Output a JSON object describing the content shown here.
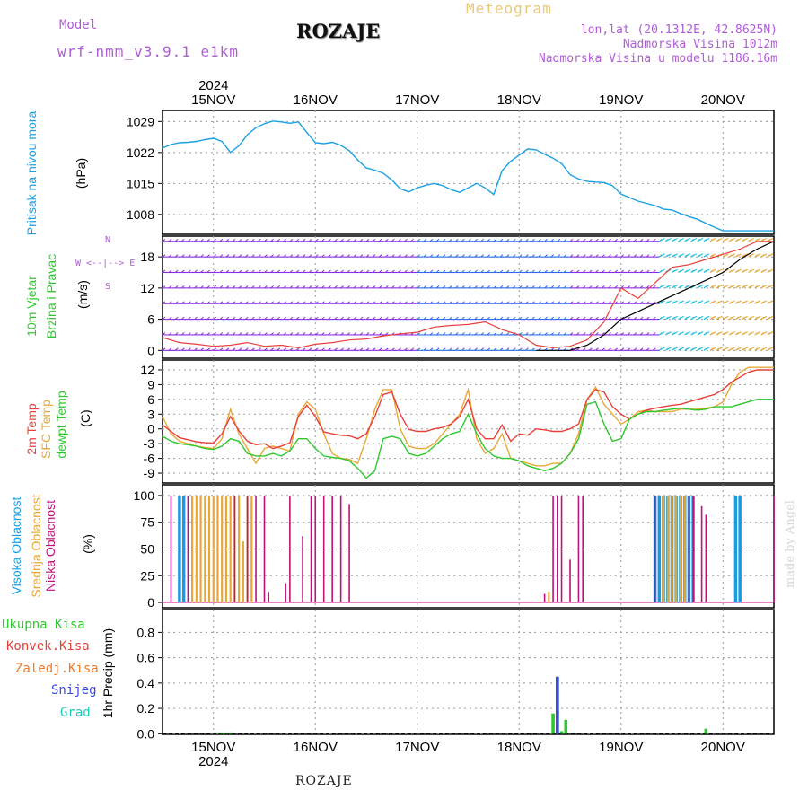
{
  "header": {
    "model_label": "Model",
    "model_name": "wrf-nmm_v3.9.1 e1km",
    "title": "ROZAJE",
    "meteogram": "Meteogram",
    "coords": "lon,lat (20.1312E, 42.8625N)",
    "elevation": "Nadmorska Visina 1012m",
    "model_elevation": "Nadmorska Visina u modelu 1186.16m"
  },
  "footer": {
    "title": "ROZAJE",
    "credit": "made by Angel"
  },
  "colors": {
    "pressure": "#1aa0e6",
    "t2m": "#e8403a",
    "sfc": "#e8a838",
    "dew": "#2ec82e",
    "high_cloud": "#1a9ae0",
    "mid_cloud": "#e8a838",
    "low_cloud": "#c0127a",
    "total_precip": "#2ec82e",
    "conv_precip": "#e8403a",
    "frz_precip": "#f07a2a",
    "snow": "#3a4ae0",
    "graupel": "#20c8b8",
    "wind_speed": "#e8403a",
    "wind_gust": "#000000",
    "grid": "#9a9a9a",
    "accent": "#b05cd8"
  },
  "chart_data": [
    {
      "type": "line",
      "title": "Pritisak na nivou mora",
      "ylabel": "(hPa)",
      "xlabel_top": [
        "15NOV",
        "16NOV",
        "17NOV",
        "18NOV",
        "19NOV",
        "20NOV"
      ],
      "year_label": "2024",
      "yticks": [
        1008,
        1015,
        1022,
        1029
      ],
      "ylim": [
        1003.5,
        1031.5
      ],
      "xlim": [
        0,
        144
      ],
      "grid": true,
      "series": [
        {
          "name": "Pritisak na nivou mora",
          "x": [
            0,
            2,
            4,
            6,
            8,
            10,
            12,
            14,
            16,
            18,
            20,
            22,
            24,
            26,
            28,
            30,
            32,
            34,
            36,
            38,
            40,
            42,
            44,
            46,
            48,
            50,
            52,
            54,
            56,
            58,
            60,
            62,
            64,
            66,
            68,
            70,
            72,
            74,
            76,
            78,
            80,
            82,
            84,
            86,
            88,
            90,
            92,
            94,
            96,
            98,
            100,
            102,
            104,
            106,
            108,
            110,
            112,
            114,
            116,
            118,
            120,
            122,
            124,
            126,
            128,
            130,
            132,
            134,
            136,
            138,
            140,
            142,
            144
          ],
          "values": [
            1023.0,
            1023.8,
            1024.2,
            1024.3,
            1024.5,
            1024.9,
            1025.2,
            1024.5,
            1022.0,
            1023.5,
            1026.0,
            1027.6,
            1028.5,
            1029.1,
            1028.9,
            1028.6,
            1028.9,
            1026.5,
            1024.2,
            1024.0,
            1024.3,
            1023.6,
            1022.4,
            1020.3,
            1018.5,
            1018.0,
            1017.3,
            1015.8,
            1013.8,
            1013.1,
            1014.0,
            1014.6,
            1015.0,
            1014.5,
            1013.6,
            1013.0,
            1014.0,
            1015.0,
            1014.0,
            1012.5,
            1017.9,
            1020.0,
            1021.4,
            1022.8,
            1022.6,
            1021.6,
            1020.7,
            1019.5,
            1017.0,
            1016.0,
            1015.5,
            1015.3,
            1015.2,
            1014.5,
            1012.6,
            1011.8,
            1011.0,
            1010.5,
            1010.0,
            1009.2,
            1009.0,
            1008.2,
            1007.5,
            1006.9,
            1006.0,
            1005.1,
            1004.3,
            1004.3,
            1004.3,
            1004.3,
            1004.3,
            1004.3,
            1004.3
          ]
        }
      ]
    },
    {
      "type": "line",
      "title": "10m Vjetar Brzina i Pravac",
      "ylabel": "(m/s)",
      "compass": "W <--|--> E",
      "compass_n": "N",
      "compass_s": "S",
      "yticks": [
        0,
        6,
        12,
        18
      ],
      "ylim": [
        -1.5,
        22
      ],
      "xlim": [
        0,
        144
      ],
      "grid": true,
      "series": [
        {
          "name": "wind speed",
          "x": [
            0,
            4,
            8,
            12,
            16,
            20,
            24,
            28,
            32,
            36,
            40,
            44,
            48,
            52,
            56,
            60,
            64,
            68,
            72,
            76,
            80,
            84,
            88,
            92,
            96,
            100,
            104,
            108,
            112,
            116,
            120,
            124,
            128,
            132,
            136,
            140,
            144
          ],
          "values": [
            2.5,
            1.5,
            1.2,
            0.8,
            1.0,
            1.5,
            0.8,
            1.0,
            0.5,
            1.2,
            1.5,
            2.0,
            2.2,
            2.8,
            3.2,
            3.5,
            4.5,
            4.8,
            5.0,
            5.5,
            4.0,
            3.0,
            1.0,
            0.5,
            0.8,
            2.0,
            5.5,
            12.0,
            10.0,
            13.0,
            16.0,
            16.5,
            17.5,
            18.5,
            19.5,
            21.0,
            21.0
          ]
        },
        {
          "name": "wind gust",
          "x": [
            88,
            92,
            96,
            100,
            104,
            108,
            112,
            116,
            120,
            124,
            128,
            132,
            136,
            140,
            144
          ],
          "values": [
            0.0,
            0.0,
            0.0,
            1.0,
            3.0,
            6.0,
            7.5,
            9.0,
            10.5,
            12.0,
            13.5,
            15.0,
            17.5,
            19.5,
            21.0
          ]
        }
      ]
    },
    {
      "type": "line",
      "title": "2m Temp / SFC Temp / dewpt Temp",
      "ylabel": "(C)",
      "yticks": [
        -9,
        -6,
        -3,
        0,
        3,
        6,
        9,
        12
      ],
      "ylim": [
        -11,
        14
      ],
      "xlim": [
        0,
        144
      ],
      "grid": true,
      "series": [
        {
          "name": "2m Temp",
          "x": [
            0,
            2,
            4,
            6,
            8,
            10,
            12,
            14,
            16,
            18,
            20,
            22,
            24,
            26,
            28,
            30,
            32,
            34,
            36,
            38,
            40,
            42,
            44,
            46,
            48,
            50,
            52,
            54,
            56,
            58,
            60,
            62,
            64,
            66,
            68,
            70,
            72,
            74,
            76,
            78,
            80,
            82,
            84,
            86,
            88,
            90,
            92,
            94,
            96,
            98,
            100,
            102,
            104,
            106,
            108,
            110,
            112,
            114,
            116,
            118,
            120,
            122,
            124,
            126,
            128,
            130,
            132,
            134,
            136,
            138,
            140,
            142,
            144
          ],
          "values": [
            0.8,
            -0.5,
            -1.8,
            -2.2,
            -2.6,
            -2.8,
            -2.9,
            -1.0,
            2.5,
            -0.4,
            -2.5,
            -3.2,
            -3.0,
            -4.0,
            -3.5,
            -2.8,
            2.5,
            4.8,
            2.5,
            -0.6,
            -1.0,
            -1.3,
            -1.4,
            -2.0,
            -1.0,
            2.5,
            7.0,
            7.5,
            3.0,
            -0.1,
            -0.5,
            -0.5,
            0.0,
            0.3,
            1.0,
            2.5,
            6.0,
            0.0,
            -2.0,
            -2.0,
            0.8,
            -2.5,
            -1.0,
            -1.3,
            0.0,
            -0.2,
            -0.5,
            -0.5,
            0.0,
            1.0,
            6.0,
            8.0,
            7.5,
            4.5,
            3.0,
            2.0,
            3.0,
            3.8,
            4.2,
            4.5,
            4.8,
            5.0,
            5.5,
            6.0,
            6.5,
            7.0,
            8.0,
            9.5,
            10.5,
            11.5,
            12.0,
            12.0,
            12.0
          ]
        },
        {
          "name": "SFC Temp",
          "x": [
            0,
            2,
            4,
            6,
            8,
            10,
            12,
            14,
            16,
            18,
            20,
            22,
            24,
            26,
            28,
            30,
            32,
            34,
            36,
            38,
            40,
            42,
            44,
            46,
            48,
            50,
            52,
            54,
            56,
            58,
            60,
            62,
            64,
            66,
            68,
            70,
            72,
            74,
            76,
            78,
            80,
            82,
            84,
            86,
            88,
            90,
            92,
            94,
            96,
            98,
            100,
            102,
            104,
            106,
            108,
            110,
            112,
            114,
            116,
            118,
            120,
            122,
            124,
            126,
            128,
            130,
            132,
            134,
            136,
            138,
            140,
            142,
            144
          ],
          "values": [
            2.5,
            -1.0,
            -2.5,
            -3.0,
            -3.5,
            -3.8,
            -4.0,
            -2.0,
            4.0,
            -1.0,
            -4.0,
            -7.0,
            -4.0,
            -3.5,
            -4.0,
            -4.5,
            3.0,
            5.5,
            4.0,
            -1.0,
            -5.0,
            -6.0,
            -6.2,
            -7.0,
            -2.0,
            4.0,
            8.0,
            8.0,
            0.0,
            -3.5,
            -4.0,
            -4.0,
            -3.0,
            -1.0,
            1.0,
            3.0,
            8.0,
            -2.0,
            -5.0,
            -4.0,
            -1.0,
            -6.0,
            -6.5,
            -7.0,
            -7.5,
            -7.5,
            -7.0,
            -7.0,
            -5.0,
            -1.0,
            6.0,
            8.5,
            5.0,
            3.0,
            1.0,
            2.0,
            3.5,
            3.8,
            3.5,
            3.5,
            3.5,
            4.0,
            4.0,
            4.0,
            4.2,
            4.5,
            5.5,
            9.0,
            11.5,
            12.5,
            12.5,
            12.5,
            12.5
          ]
        },
        {
          "name": "dewpt Temp",
          "x": [
            0,
            2,
            4,
            6,
            8,
            10,
            12,
            14,
            16,
            18,
            20,
            22,
            24,
            26,
            28,
            30,
            32,
            34,
            36,
            38,
            40,
            42,
            44,
            46,
            48,
            50,
            52,
            54,
            56,
            58,
            60,
            62,
            64,
            66,
            68,
            70,
            72,
            74,
            76,
            78,
            80,
            82,
            84,
            86,
            88,
            90,
            92,
            94,
            96,
            98,
            100,
            102,
            104,
            106,
            108,
            110,
            112,
            114,
            116,
            118,
            120,
            122,
            124,
            126,
            128,
            130,
            132,
            134,
            136,
            138,
            140,
            142,
            144
          ],
          "values": [
            -1.5,
            -2.5,
            -3.0,
            -3.2,
            -3.5,
            -4.0,
            -4.2,
            -3.5,
            -2.0,
            -2.5,
            -5.0,
            -5.5,
            -5.5,
            -5.0,
            -5.5,
            -4.5,
            -2.0,
            -2.0,
            -4.0,
            -5.5,
            -5.8,
            -6.0,
            -6.5,
            -8.0,
            -10.0,
            -8.5,
            -2.0,
            -1.5,
            -2.0,
            -5.0,
            -5.5,
            -5.0,
            -3.5,
            -2.0,
            -1.0,
            -0.5,
            3.0,
            -1.0,
            -4.0,
            -5.5,
            -6.0,
            -6.0,
            -6.5,
            -7.5,
            -8.0,
            -8.5,
            -8.0,
            -7.0,
            -5.0,
            -2.0,
            5.0,
            5.5,
            1.0,
            -2.5,
            -2.0,
            2.0,
            3.0,
            3.5,
            3.5,
            3.8,
            4.0,
            4.2,
            4.0,
            3.8,
            4.0,
            4.5,
            4.5,
            4.5,
            5.0,
            5.5,
            6.0,
            6.0,
            6.0
          ]
        }
      ]
    },
    {
      "type": "bar",
      "title": "Visoka Oblacnost / Srednja Oblacnost / Niska Oblacnost",
      "ylabel": "(%)",
      "yticks": [
        0,
        25,
        50,
        75,
        100
      ],
      "ylim": [
        -5,
        110
      ],
      "xlim": [
        0,
        144
      ],
      "grid": true,
      "series": [
        {
          "name": "Visoka Oblacnost",
          "x": [
            4,
            5,
            116,
            117,
            118,
            119,
            120,
            121,
            122,
            123,
            124,
            125,
            135,
            136
          ],
          "values": [
            100,
            100,
            100,
            100,
            100,
            100,
            100,
            100,
            100,
            100,
            100,
            100,
            100,
            100
          ]
        },
        {
          "name": "Srednja Oblacnost",
          "x": [
            7,
            8,
            9,
            10,
            11,
            12,
            13,
            14,
            15,
            16,
            17,
            18,
            19,
            20,
            21,
            91,
            118,
            119,
            120,
            121,
            122,
            123
          ],
          "values": [
            100,
            100,
            100,
            100,
            100,
            100,
            100,
            100,
            100,
            100,
            100,
            100,
            57,
            100,
            100,
            10,
            100,
            100,
            100,
            100,
            100,
            100
          ]
        },
        {
          "name": "Niska Oblacnost",
          "x": [
            2,
            6,
            17,
            20,
            22,
            24,
            25,
            29,
            30,
            33,
            35,
            36,
            38,
            40,
            42,
            44,
            90,
            92,
            93,
            94,
            96,
            98,
            99,
            116,
            124,
            125,
            127,
            128,
            144
          ],
          "values": [
            100,
            100,
            100,
            100,
            100,
            100,
            10,
            18,
            100,
            62,
            100,
            100,
            100,
            100,
            100,
            92,
            8,
            100,
            100,
            100,
            40,
            100,
            100,
            100,
            100,
            100,
            90,
            82,
            100
          ]
        }
      ]
    },
    {
      "type": "bar",
      "title": "1hr Precip",
      "ylabel": "1hr Precip (mm)",
      "legend": [
        "Ukupna Kisa",
        "Konvek.Kisa",
        "Zaledj.Kisa",
        "Snijeg",
        "Grad"
      ],
      "yticks": [
        0.0,
        0.2,
        0.4,
        0.6,
        0.8
      ],
      "ylim": [
        -0.005,
        0.98
      ],
      "xlim": [
        0,
        144
      ],
      "grid": true,
      "xlabel_bottom": [
        "15NOV",
        "16NOV",
        "17NOV",
        "18NOV",
        "19NOV",
        "20NOV"
      ],
      "year_label": "2024",
      "series": [
        {
          "name": "Ukupna Kisa",
          "x": [
            13,
            14,
            15,
            16,
            92,
            93,
            94,
            95,
            128
          ],
          "values": [
            0.01,
            0.01,
            0.01,
            0.01,
            0.16,
            0.45,
            0.02,
            0.11,
            0.04
          ]
        },
        {
          "name": "Snijeg",
          "x": [
            93
          ],
          "values": [
            0.45
          ]
        }
      ]
    }
  ],
  "axis": {
    "day_labels": [
      "15NOV",
      "16NOV",
      "17NOV",
      "18NOV",
      "19NOV",
      "20NOV"
    ],
    "day_positions": [
      12,
      36,
      60,
      84,
      108,
      132
    ],
    "year": "2024"
  },
  "legends": {
    "pressure": "Pritisak na nivou mora",
    "wind_a": "10m Vjetar",
    "wind_b": "Brzina i Pravac",
    "temp_a": "2m Temp",
    "temp_b": "SFC Temp",
    "temp_c": "dewpt Temp",
    "cloud_a": "Visoka Oblacnost",
    "cloud_b": "Srednja Oblacnost",
    "cloud_c": "Niska Oblacnost",
    "precip": [
      "Ukupna Kisa",
      "Konvek.Kisa",
      "Zaledj.Kisa",
      "Snijeg",
      "Grad"
    ]
  },
  "units": {
    "pressure": "(hPa)",
    "wind": "(m/s)",
    "temp": "(C)",
    "cloud": "(%)",
    "precip": "1hr Precip (mm)"
  }
}
